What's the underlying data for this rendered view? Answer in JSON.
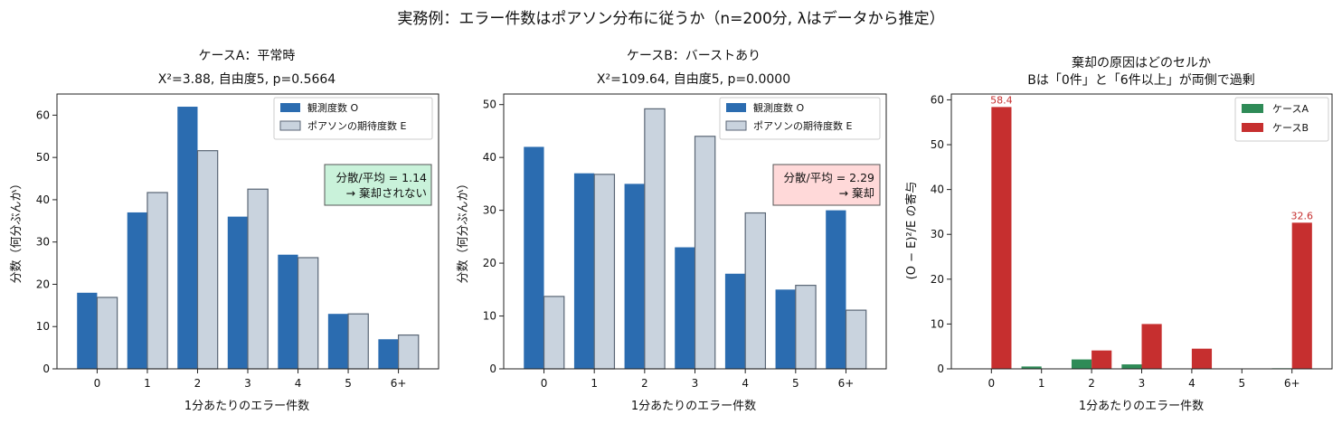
{
  "figure": {
    "suptitle": "実務例：エラー件数はポアソン分布に従うか（n=200分, λはデータから推定）"
  },
  "colors": {
    "observed": "#2b6cb0",
    "expected_fill": "#c9d3de",
    "expected_edge": "#5a6675",
    "case_a": "#2e8b57",
    "case_b": "#c62f2f",
    "note_a_fill": "#c9f2da",
    "note_b_fill": "#ffd9d9"
  },
  "chart_data": [
    {
      "type": "bar",
      "title": "ケースA：平常時",
      "subtitle": "X²=3.88, 自由度5, p=0.5664",
      "xlabel": "1分あたりのエラー件数",
      "ylabel": "分数（何分ぶんか）",
      "categories": [
        "0",
        "1",
        "2",
        "3",
        "4",
        "5",
        "6+"
      ],
      "ylim": [
        0,
        65
      ],
      "yticks": [
        0,
        10,
        20,
        30,
        40,
        50,
        60
      ],
      "legend_position": "top-right",
      "series": [
        {
          "name": "観測度数 O",
          "values": [
            18,
            37,
            62,
            36,
            27,
            13,
            7
          ]
        },
        {
          "name": "ポアソンの期待度数 E",
          "values": [
            16.9,
            41.7,
            51.6,
            42.5,
            26.3,
            13.0,
            8.0
          ]
        }
      ],
      "annotation": {
        "line1": "分散/平均 = 1.14",
        "line2": "→ 棄却されない"
      }
    },
    {
      "type": "bar",
      "title": "ケースB：バーストあり",
      "subtitle": "X²=109.64, 自由度5, p=0.0000",
      "xlabel": "1分あたりのエラー件数",
      "ylabel": "分数（何分ぶんか）",
      "categories": [
        "0",
        "1",
        "2",
        "3",
        "4",
        "5",
        "6+"
      ],
      "ylim": [
        0,
        52
      ],
      "yticks": [
        0,
        10,
        20,
        30,
        40,
        50
      ],
      "legend_position": "top-right",
      "series": [
        {
          "name": "観測度数 O",
          "values": [
            42,
            37,
            35,
            23,
            18,
            15,
            30
          ]
        },
        {
          "name": "ポアソンの期待度数 E",
          "values": [
            13.7,
            36.8,
            49.2,
            44.0,
            29.5,
            15.8,
            11.1
          ]
        }
      ],
      "annotation": {
        "line1": "分散/平均 = 2.29",
        "line2": "→ 棄却"
      }
    },
    {
      "type": "bar",
      "title": "棄却の原因はどのセルか",
      "subtitle": "Bは「0件」と「6件以上」が両側で過剰",
      "xlabel": "1分あたりのエラー件数",
      "ylabel": "(O − E)²/E の寄与",
      "categories": [
        "0",
        "1",
        "2",
        "3",
        "4",
        "5",
        "6+"
      ],
      "ylim": [
        0,
        61.3
      ],
      "yticks": [
        0,
        10,
        20,
        30,
        40,
        50,
        60
      ],
      "legend_position": "top-right",
      "series": [
        {
          "name": "ケースA",
          "values": [
            0.07,
            0.53,
            2.1,
            1.0,
            0.02,
            0.0,
            0.13
          ]
        },
        {
          "name": "ケースB",
          "values": [
            58.4,
            0.0,
            4.1,
            10.0,
            4.5,
            0.04,
            32.6
          ]
        }
      ],
      "data_labels": [
        "58.4",
        "32.6"
      ]
    }
  ]
}
